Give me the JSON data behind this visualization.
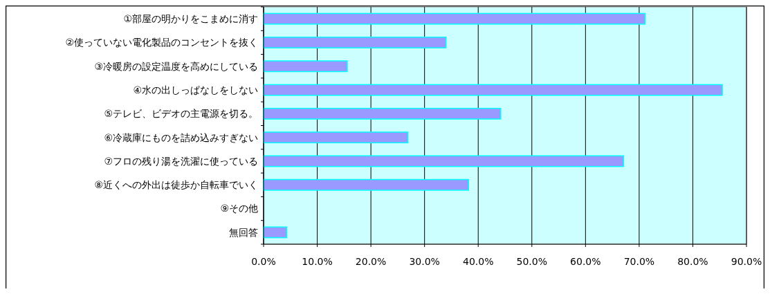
{
  "chart_data": {
    "type": "bar",
    "orientation": "horizontal",
    "categories": [
      "①部屋の明かりをこまめに消す",
      "②使っていない電化製品のコンセントを抜く",
      "③冷暖房の設定温度を高めにしている",
      "④水の出しっぱなしをしない",
      "⑤テレビ、ビデオの主電源を切る。",
      "⑥冷蔵庫にものを詰め込みすぎない",
      "⑦フロの残り湯を洗濯に使っている",
      "⑧近くへの外出は徒歩か自転車でいく",
      "⑨その他",
      "無回答"
    ],
    "values": [
      71.1,
      34.0,
      15.6,
      85.5,
      44.2,
      26.9,
      67.1,
      38.2,
      0,
      4.3
    ],
    "color": "#9999ff",
    "xlim": [
      0,
      90
    ],
    "xticks": [
      {
        "value": 0,
        "label": "0.0%"
      },
      {
        "value": 10,
        "label": "10.0%"
      },
      {
        "value": 20,
        "label": "20.0%"
      },
      {
        "value": 30,
        "label": "30.0%"
      },
      {
        "value": 40,
        "label": "40.0%"
      },
      {
        "value": 50,
        "label": "50.0%"
      },
      {
        "value": 60,
        "label": "60.0%"
      },
      {
        "value": 70,
        "label": "70.0%"
      },
      {
        "value": 80,
        "label": "80.0%"
      },
      {
        "value": 90,
        "label": "90.0%"
      }
    ],
    "grid": "x"
  }
}
